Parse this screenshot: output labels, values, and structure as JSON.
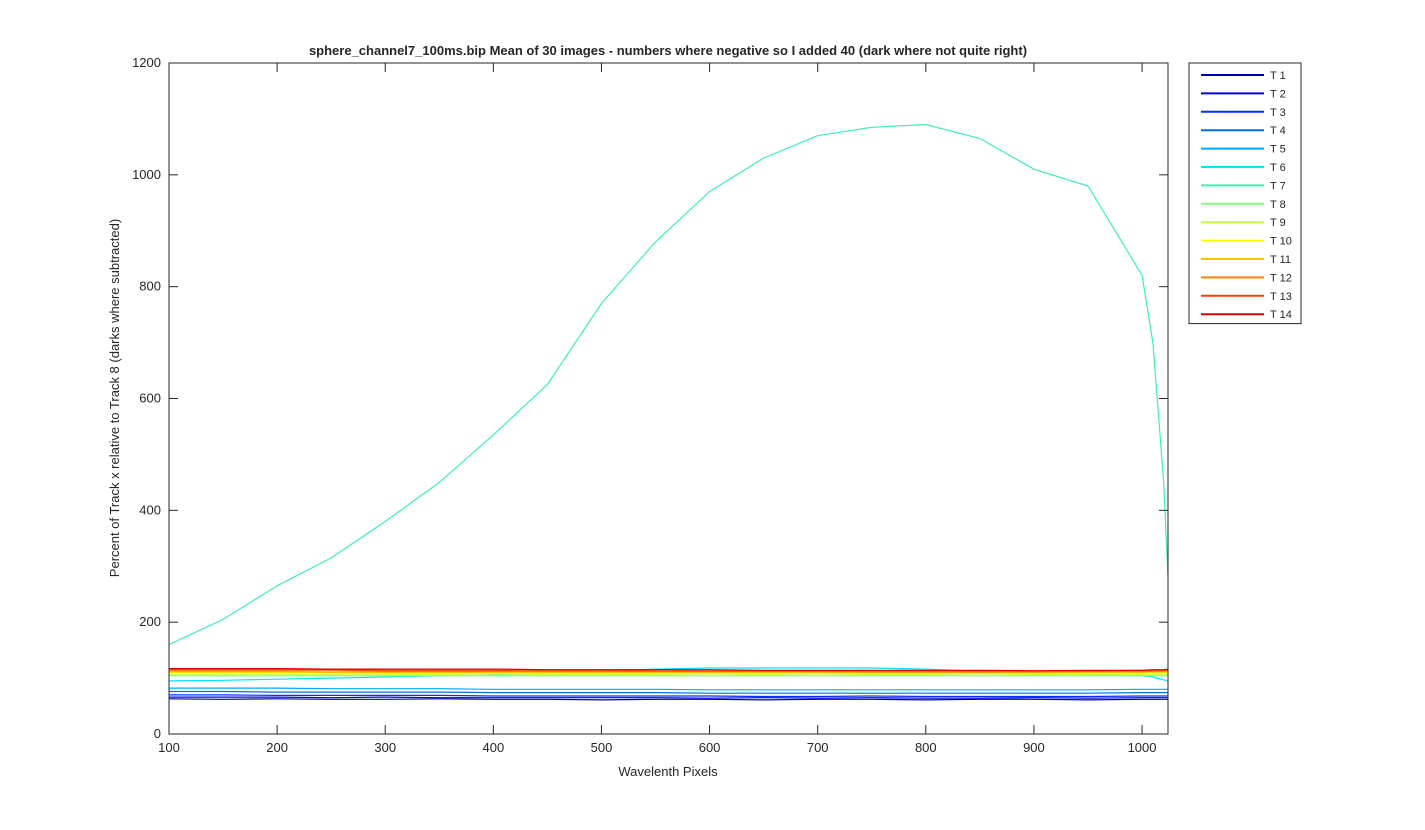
{
  "chart_data": {
    "type": "line",
    "title": "sphere_channel7_100ms.bip  Mean of 30 images - numbers where negative so I added 40 (dark where not quite right)",
    "xlabel": "Wavelenth Pixels",
    "ylabel": "Percent of Track x relative to Track 8 (darks where subtracted)",
    "x": [
      100,
      150,
      200,
      250,
      300,
      350,
      400,
      450,
      500,
      550,
      600,
      650,
      700,
      750,
      800,
      850,
      900,
      950,
      1000,
      1010,
      1020,
      1024
    ],
    "xlim": [
      100,
      1024
    ],
    "xticks": [
      100,
      200,
      300,
      400,
      500,
      600,
      700,
      800,
      900,
      1000
    ],
    "ylim": [
      0,
      1200
    ],
    "yticks": [
      0,
      200,
      400,
      600,
      800,
      1000,
      1200
    ],
    "grid": false,
    "legend": "outside-upper-right",
    "series": [
      {
        "name": "T 1",
        "color": "#0000aa",
        "values": [
          63,
          62,
          63,
          62,
          62,
          63,
          62,
          62,
          61,
          62,
          62,
          61,
          62,
          62,
          61,
          62,
          62,
          61,
          62,
          62,
          62,
          62
        ]
      },
      {
        "name": "T 2",
        "color": "#0000e0",
        "values": [
          66,
          66,
          66,
          65,
          66,
          65,
          65,
          65,
          65,
          65,
          64,
          65,
          64,
          65,
          64,
          64,
          65,
          64,
          65,
          65,
          65,
          65
        ]
      },
      {
        "name": "T 3",
        "color": "#0030ff",
        "values": [
          70,
          70,
          69,
          69,
          69,
          69,
          68,
          68,
          68,
          68,
          68,
          67,
          67,
          68,
          67,
          67,
          67,
          67,
          68,
          68,
          68,
          68
        ]
      },
      {
        "name": "T 4",
        "color": "#0070e0",
        "values": [
          76,
          76,
          75,
          75,
          75,
          75,
          74,
          74,
          74,
          74,
          73,
          73,
          73,
          73,
          73,
          73,
          73,
          73,
          74,
          74,
          74,
          74
        ]
      },
      {
        "name": "T 5",
        "color": "#00a8ff",
        "values": [
          82,
          82,
          82,
          81,
          81,
          81,
          80,
          80,
          80,
          80,
          79,
          79,
          79,
          79,
          79,
          79,
          79,
          79,
          80,
          80,
          80,
          80
        ]
      },
      {
        "name": "T 6",
        "color": "#00e4ff",
        "values": [
          95,
          96,
          98,
          100,
          102,
          104,
          106,
          108,
          112,
          116,
          118,
          118,
          118,
          118,
          116,
          112,
          108,
          106,
          104,
          102,
          97,
          95
        ]
      },
      {
        "name": "T 7",
        "color": "#3cf0b4",
        "values": [
          160,
          205,
          265,
          315,
          380,
          450,
          535,
          625,
          770,
          880,
          970,
          1030,
          1070,
          1085,
          1090,
          1065,
          1010,
          980,
          820,
          700,
          450,
          280
        ]
      },
      {
        "name": "T 8",
        "color": "#80ff80",
        "values": [
          104,
          104,
          104,
          104,
          104,
          104,
          104,
          104,
          104,
          104,
          104,
          104,
          104,
          104,
          104,
          104,
          104,
          104,
          104,
          104,
          104,
          104
        ]
      },
      {
        "name": "T 9",
        "color": "#c0ff40",
        "values": [
          106,
          106,
          106,
          106,
          106,
          106,
          105,
          106,
          106,
          106,
          105,
          106,
          105,
          106,
          106,
          105,
          106,
          106,
          106,
          106,
          106,
          106
        ]
      },
      {
        "name": "T 10",
        "color": "#ffff00",
        "values": [
          109,
          109,
          109,
          109,
          108,
          108,
          108,
          108,
          108,
          108,
          108,
          108,
          108,
          108,
          108,
          108,
          108,
          108,
          108,
          109,
          109,
          109
        ]
      },
      {
        "name": "T 11",
        "color": "#ffc000",
        "values": [
          111,
          111,
          111,
          110,
          110,
          110,
          110,
          110,
          110,
          110,
          110,
          110,
          110,
          110,
          110,
          110,
          110,
          110,
          110,
          111,
          111,
          111
        ]
      },
      {
        "name": "T 12",
        "color": "#ff8000",
        "values": [
          113,
          113,
          113,
          113,
          112,
          112,
          112,
          112,
          112,
          112,
          112,
          112,
          112,
          111,
          111,
          111,
          111,
          112,
          112,
          112,
          113,
          113
        ]
      },
      {
        "name": "T 13",
        "color": "#ff4000",
        "values": [
          115,
          115,
          115,
          115,
          114,
          114,
          114,
          114,
          114,
          113,
          113,
          113,
          113,
          113,
          113,
          113,
          113,
          113,
          114,
          114,
          114,
          115
        ]
      },
      {
        "name": "T 14",
        "color": "#e00000",
        "values": [
          117,
          117,
          117,
          116,
          116,
          116,
          116,
          115,
          115,
          115,
          115,
          114,
          114,
          114,
          114,
          114,
          113,
          114,
          114,
          115,
          115,
          116
        ]
      }
    ]
  }
}
